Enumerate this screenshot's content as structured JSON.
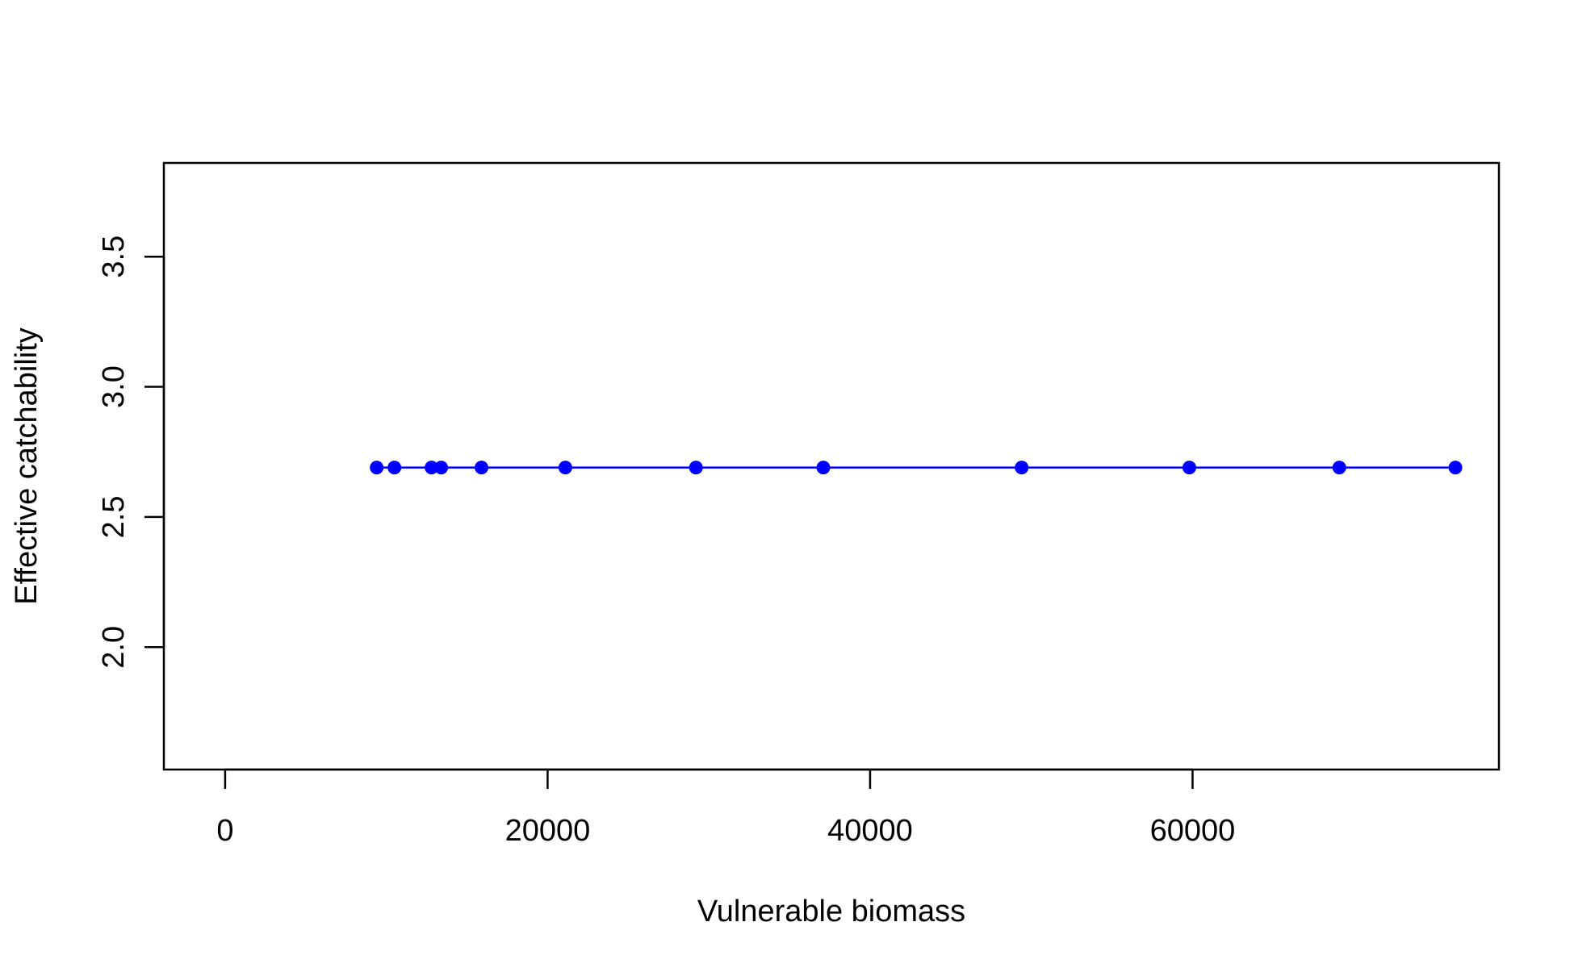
{
  "chart_data": {
    "type": "line",
    "title": "",
    "xlabel": "Vulnerable biomass",
    "ylabel": "Effective catchability",
    "xlim": [
      -3800,
      79000
    ],
    "ylim": [
      1.53,
      3.86
    ],
    "x_ticks": [
      {
        "value": 0,
        "label": "0"
      },
      {
        "value": 20000,
        "label": "20000"
      },
      {
        "value": 40000,
        "label": "40000"
      },
      {
        "value": 60000,
        "label": "60000"
      }
    ],
    "y_ticks": [
      {
        "value": 2.0,
        "label": "2.0"
      },
      {
        "value": 2.5,
        "label": "2.5"
      },
      {
        "value": 3.0,
        "label": "3.0"
      },
      {
        "value": 3.5,
        "label": "3.5"
      }
    ],
    "grid": false,
    "legend": "none",
    "series": [
      {
        "color": "#0000ff",
        "marker": "filled-circle",
        "x": [
          9400,
          10500,
          12800,
          13400,
          15900,
          21100,
          29200,
          37100,
          49400,
          59800,
          69100,
          76300
        ],
        "y": [
          2.69,
          2.69,
          2.69,
          2.69,
          2.69,
          2.69,
          2.69,
          2.69,
          2.69,
          2.69,
          2.69,
          2.69
        ]
      }
    ]
  }
}
